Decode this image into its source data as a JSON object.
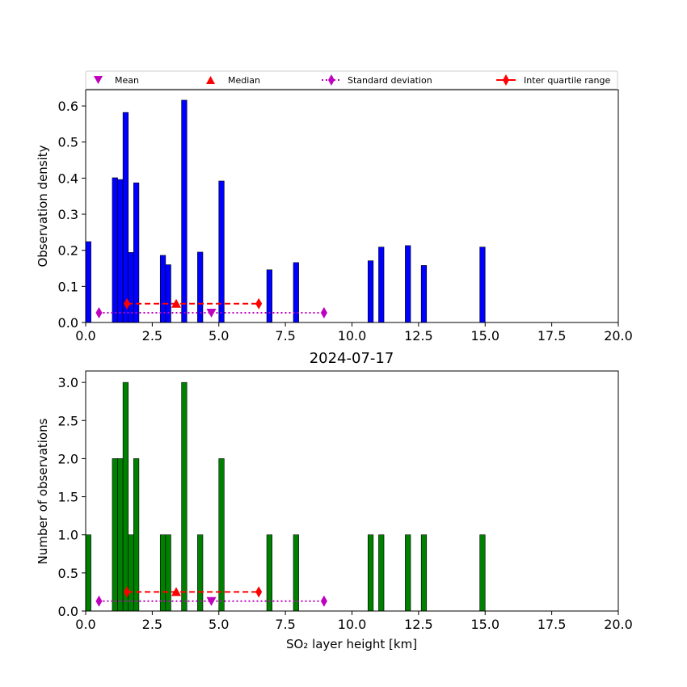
{
  "chart_data": [
    {
      "type": "bar",
      "panel": "top",
      "title": "",
      "xlabel": "",
      "ylabel": "Observation density",
      "xlim": [
        0,
        20
      ],
      "ylim": [
        0,
        0.645
      ],
      "xticks": [
        "0.0",
        "2.5",
        "5.0",
        "7.5",
        "10.0",
        "12.5",
        "15.0",
        "17.5",
        "20.0"
      ],
      "yticks": [
        "0.0",
        "0.1",
        "0.2",
        "0.3",
        "0.4",
        "0.5",
        "0.6"
      ],
      "bar_color": "#0000ff",
      "bin_width": 0.2,
      "bars": [
        {
          "x": 0.1,
          "value": 0.224
        },
        {
          "x": 1.1,
          "value": 0.401
        },
        {
          "x": 1.3,
          "value": 0.396
        },
        {
          "x": 1.5,
          "value": 0.582
        },
        {
          "x": 1.7,
          "value": 0.194
        },
        {
          "x": 1.9,
          "value": 0.387
        },
        {
          "x": 2.9,
          "value": 0.186
        },
        {
          "x": 3.1,
          "value": 0.16
        },
        {
          "x": 3.7,
          "value": 0.616
        },
        {
          "x": 4.3,
          "value": 0.195
        },
        {
          "x": 5.1,
          "value": 0.392
        },
        {
          "x": 6.9,
          "value": 0.146
        },
        {
          "x": 7.9,
          "value": 0.166
        },
        {
          "x": 10.7,
          "value": 0.171
        },
        {
          "x": 11.1,
          "value": 0.209
        },
        {
          "x": 12.1,
          "value": 0.213
        },
        {
          "x": 12.7,
          "value": 0.158
        },
        {
          "x": 14.9,
          "value": 0.209
        }
      ],
      "stats": {
        "mean": {
          "x": 4.72,
          "y": 0.027
        },
        "median": {
          "x": 3.4,
          "y": 0.052
        },
        "std": {
          "x": [
            0.5,
            8.95
          ],
          "y": 0.027
        },
        "iqr": {
          "x": [
            1.55,
            6.5
          ],
          "y": 0.052
        }
      }
    },
    {
      "type": "bar",
      "panel": "bottom",
      "title": "2024-07-17",
      "xlabel": "SO₂ layer height [km]",
      "ylabel": "Number of observations",
      "xlim": [
        0,
        20
      ],
      "ylim": [
        0,
        3.15
      ],
      "xticks": [
        "0.0",
        "2.5",
        "5.0",
        "7.5",
        "10.0",
        "12.5",
        "15.0",
        "17.5",
        "20.0"
      ],
      "yticks": [
        "0.0",
        "0.5",
        "1.0",
        "1.5",
        "2.0",
        "2.5",
        "3.0"
      ],
      "bar_color": "#008000",
      "bin_width": 0.2,
      "bars": [
        {
          "x": 0.1,
          "value": 1
        },
        {
          "x": 1.1,
          "value": 2
        },
        {
          "x": 1.3,
          "value": 2
        },
        {
          "x": 1.5,
          "value": 3
        },
        {
          "x": 1.7,
          "value": 1
        },
        {
          "x": 1.9,
          "value": 2
        },
        {
          "x": 2.9,
          "value": 1
        },
        {
          "x": 3.1,
          "value": 1
        },
        {
          "x": 3.7,
          "value": 3
        },
        {
          "x": 4.3,
          "value": 1
        },
        {
          "x": 5.1,
          "value": 2
        },
        {
          "x": 6.9,
          "value": 1
        },
        {
          "x": 7.9,
          "value": 1
        },
        {
          "x": 10.7,
          "value": 1
        },
        {
          "x": 11.1,
          "value": 1
        },
        {
          "x": 12.1,
          "value": 1
        },
        {
          "x": 12.7,
          "value": 1
        },
        {
          "x": 14.9,
          "value": 1
        }
      ],
      "stats": {
        "mean": {
          "x": 4.72,
          "y": 0.13
        },
        "median": {
          "x": 3.4,
          "y": 0.25
        },
        "std": {
          "x": [
            0.5,
            8.95
          ],
          "y": 0.13
        },
        "iqr": {
          "x": [
            1.55,
            6.5
          ],
          "y": 0.25
        }
      }
    }
  ],
  "legend": {
    "placement": "top",
    "entries": [
      {
        "key": "mean",
        "label": "Mean",
        "color": "#bf00bf",
        "marker": "triangle-down"
      },
      {
        "key": "median",
        "label": "Median",
        "color": "#ff0000",
        "marker": "triangle-up"
      },
      {
        "key": "std",
        "label": "Standard deviation",
        "color": "#bf00bf",
        "marker": "thin-diamond",
        "line": "dotted"
      },
      {
        "key": "iqr",
        "label": "Inter quartile range",
        "color": "#ff0000",
        "marker": "thin-diamond",
        "line": "dashed"
      }
    ]
  },
  "colors": {
    "mean": "#bf00bf",
    "median": "#ff0000",
    "std": "#bf00bf",
    "iqr": "#ff0000"
  }
}
